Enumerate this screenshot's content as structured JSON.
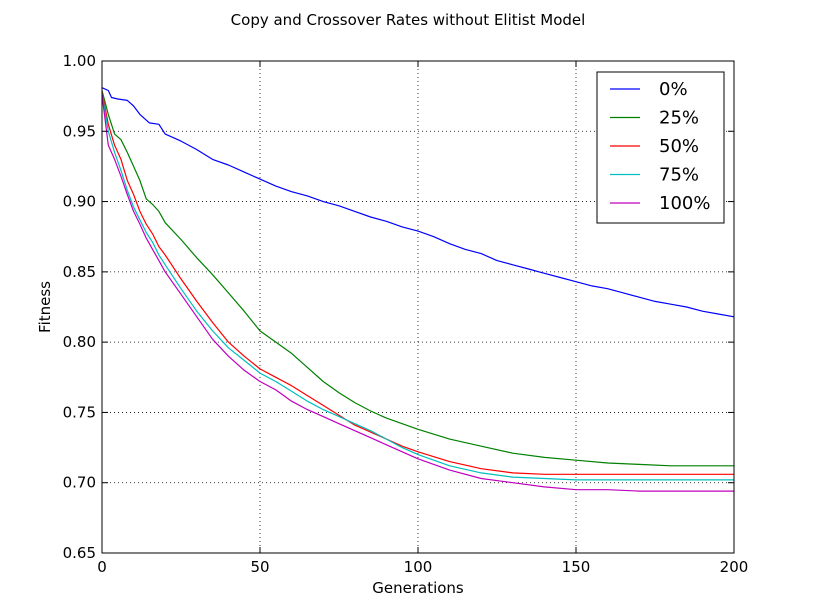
{
  "chart_data": {
    "type": "line",
    "title": "Copy and Crossover Rates without Elitist Model",
    "xlabel": "Generations",
    "ylabel": "Fitness",
    "xlim": [
      0,
      200
    ],
    "ylim": [
      0.65,
      1.0
    ],
    "xticks": [
      0,
      50,
      100,
      150,
      200
    ],
    "xtick_labels": [
      "0",
      "50",
      "100",
      "150",
      "200"
    ],
    "yticks": [
      0.65,
      0.7,
      0.75,
      0.8,
      0.85,
      0.9,
      0.95,
      1.0
    ],
    "ytick_labels": [
      "0.65",
      "0.70",
      "0.75",
      "0.80",
      "0.85",
      "0.90",
      "0.95",
      "1.00"
    ],
    "grid": true,
    "legend_position": "top-right",
    "series": [
      {
        "name": "0%",
        "color": "#0000ff",
        "x": [
          0,
          2,
          3,
          5,
          8,
          10,
          12,
          15,
          18,
          20,
          25,
          30,
          35,
          40,
          45,
          50,
          55,
          60,
          65,
          70,
          75,
          80,
          85,
          90,
          95,
          100,
          105,
          110,
          115,
          120,
          125,
          130,
          135,
          140,
          145,
          150,
          155,
          160,
          165,
          170,
          175,
          180,
          185,
          190,
          195,
          200
        ],
        "y": [
          0.981,
          0.979,
          0.974,
          0.973,
          0.972,
          0.968,
          0.962,
          0.956,
          0.955,
          0.948,
          0.943,
          0.937,
          0.93,
          0.926,
          0.921,
          0.916,
          0.911,
          0.907,
          0.904,
          0.9,
          0.897,
          0.893,
          0.889,
          0.886,
          0.882,
          0.879,
          0.875,
          0.87,
          0.866,
          0.863,
          0.858,
          0.855,
          0.852,
          0.849,
          0.846,
          0.843,
          0.84,
          0.838,
          0.835,
          0.832,
          0.829,
          0.827,
          0.825,
          0.822,
          0.82,
          0.818
        ]
      },
      {
        "name": "25%",
        "color": "#008000",
        "x": [
          0,
          2,
          4,
          6,
          8,
          10,
          12,
          14,
          16,
          18,
          20,
          25,
          30,
          35,
          40,
          45,
          50,
          55,
          60,
          65,
          70,
          75,
          80,
          85,
          90,
          95,
          100,
          110,
          120,
          130,
          140,
          150,
          160,
          170,
          180,
          190,
          200
        ],
        "y": [
          0.979,
          0.962,
          0.948,
          0.944,
          0.935,
          0.925,
          0.915,
          0.902,
          0.898,
          0.893,
          0.885,
          0.873,
          0.86,
          0.848,
          0.835,
          0.822,
          0.808,
          0.8,
          0.792,
          0.782,
          0.772,
          0.764,
          0.757,
          0.751,
          0.746,
          0.742,
          0.738,
          0.731,
          0.726,
          0.721,
          0.718,
          0.716,
          0.714,
          0.713,
          0.712,
          0.712,
          0.712
        ]
      },
      {
        "name": "50%",
        "color": "#ff0000",
        "x": [
          0,
          2,
          4,
          6,
          8,
          10,
          12,
          14,
          16,
          18,
          20,
          25,
          30,
          35,
          40,
          45,
          50,
          55,
          60,
          65,
          70,
          75,
          80,
          85,
          90,
          95,
          100,
          110,
          120,
          130,
          140,
          150,
          160,
          170,
          180,
          190,
          200
        ],
        "y": [
          0.978,
          0.955,
          0.94,
          0.93,
          0.915,
          0.905,
          0.893,
          0.884,
          0.877,
          0.868,
          0.862,
          0.845,
          0.829,
          0.814,
          0.8,
          0.79,
          0.781,
          0.775,
          0.769,
          0.762,
          0.755,
          0.748,
          0.741,
          0.736,
          0.731,
          0.726,
          0.722,
          0.715,
          0.71,
          0.707,
          0.706,
          0.706,
          0.706,
          0.706,
          0.706,
          0.706,
          0.706
        ]
      },
      {
        "name": "75%",
        "color": "#00bfbf",
        "x": [
          0,
          2,
          4,
          6,
          8,
          10,
          12,
          14,
          16,
          18,
          20,
          25,
          30,
          35,
          40,
          45,
          50,
          55,
          60,
          65,
          70,
          75,
          80,
          85,
          90,
          95,
          100,
          110,
          120,
          130,
          140,
          150,
          160,
          170,
          180,
          190,
          200
        ],
        "y": [
          0.977,
          0.95,
          0.935,
          0.922,
          0.908,
          0.896,
          0.887,
          0.878,
          0.871,
          0.862,
          0.855,
          0.838,
          0.822,
          0.808,
          0.796,
          0.787,
          0.778,
          0.772,
          0.765,
          0.758,
          0.752,
          0.747,
          0.742,
          0.737,
          0.731,
          0.725,
          0.72,
          0.712,
          0.707,
          0.704,
          0.703,
          0.702,
          0.702,
          0.702,
          0.702,
          0.702,
          0.702
        ]
      },
      {
        "name": "100%",
        "color": "#bf00bf",
        "x": [
          0,
          2,
          4,
          6,
          8,
          10,
          12,
          14,
          16,
          18,
          20,
          25,
          30,
          35,
          40,
          45,
          50,
          55,
          60,
          65,
          70,
          75,
          80,
          85,
          90,
          95,
          100,
          110,
          120,
          130,
          140,
          150,
          160,
          170,
          180,
          190,
          200
        ],
        "y": [
          0.976,
          0.94,
          0.93,
          0.918,
          0.905,
          0.893,
          0.884,
          0.874,
          0.866,
          0.858,
          0.85,
          0.834,
          0.818,
          0.802,
          0.79,
          0.78,
          0.772,
          0.766,
          0.758,
          0.752,
          0.747,
          0.742,
          0.737,
          0.732,
          0.727,
          0.722,
          0.717,
          0.709,
          0.703,
          0.7,
          0.697,
          0.695,
          0.695,
          0.694,
          0.694,
          0.694,
          0.694
        ]
      }
    ]
  }
}
